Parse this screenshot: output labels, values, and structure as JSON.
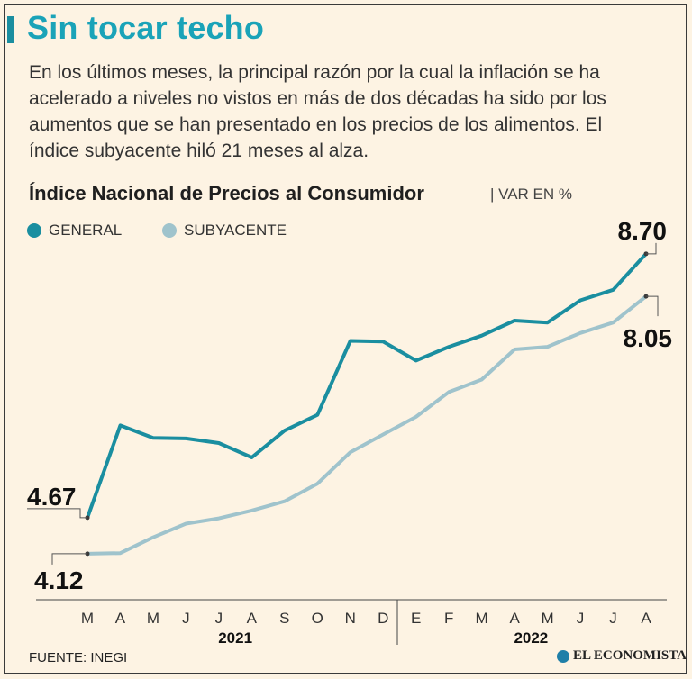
{
  "header": {
    "title": "Sin tocar techo",
    "subtitle": "En los últimos meses, la principal razón por la cual la inflación se ha acelerado a niveles no vistos en más de dos décadas ha sido por los aumentos que se han presentado en los precios de los alimentos. El índice subyacente hiló 21 meses al alza."
  },
  "chart_header": {
    "title": "Índice Nacional de Precios al Consumidor",
    "unit": "| VAR EN %"
  },
  "legend": {
    "general": "GENERAL",
    "subyacente": "SUBYACENTE"
  },
  "colors": {
    "general": "#1a8ea0",
    "subyacente": "#9fc3cc",
    "accent": "#1aa3b8"
  },
  "chart_data": {
    "type": "line",
    "categories": [
      "M",
      "A",
      "M",
      "J",
      "J",
      "A",
      "S",
      "O",
      "N",
      "D",
      "E",
      "F",
      "M",
      "A",
      "M",
      "J",
      "J",
      "A"
    ],
    "years": [
      {
        "label": "2021",
        "from": 0,
        "to": 9
      },
      {
        "label": "2022",
        "from": 10,
        "to": 17
      }
    ],
    "series": [
      {
        "name": "GENERAL",
        "values": [
          4.67,
          6.08,
          5.89,
          5.88,
          5.81,
          5.59,
          6.0,
          6.24,
          7.37,
          7.36,
          7.07,
          7.28,
          7.45,
          7.68,
          7.65,
          7.99,
          8.15,
          8.7
        ]
      },
      {
        "name": "SUBYACENTE",
        "values": [
          4.12,
          4.13,
          4.37,
          4.58,
          4.66,
          4.78,
          4.92,
          5.19,
          5.67,
          5.94,
          6.21,
          6.59,
          6.78,
          7.24,
          7.28,
          7.49,
          7.65,
          8.05
        ]
      }
    ],
    "labels": {
      "general_start": "4.67",
      "general_end": "8.70",
      "subyacente_start": "4.12",
      "subyacente_end": "8.05"
    },
    "ylim": [
      3.5,
      9.0
    ]
  },
  "footer": {
    "source": "FUENTE: INEGI",
    "brand": "EL ECONOMISTA"
  }
}
